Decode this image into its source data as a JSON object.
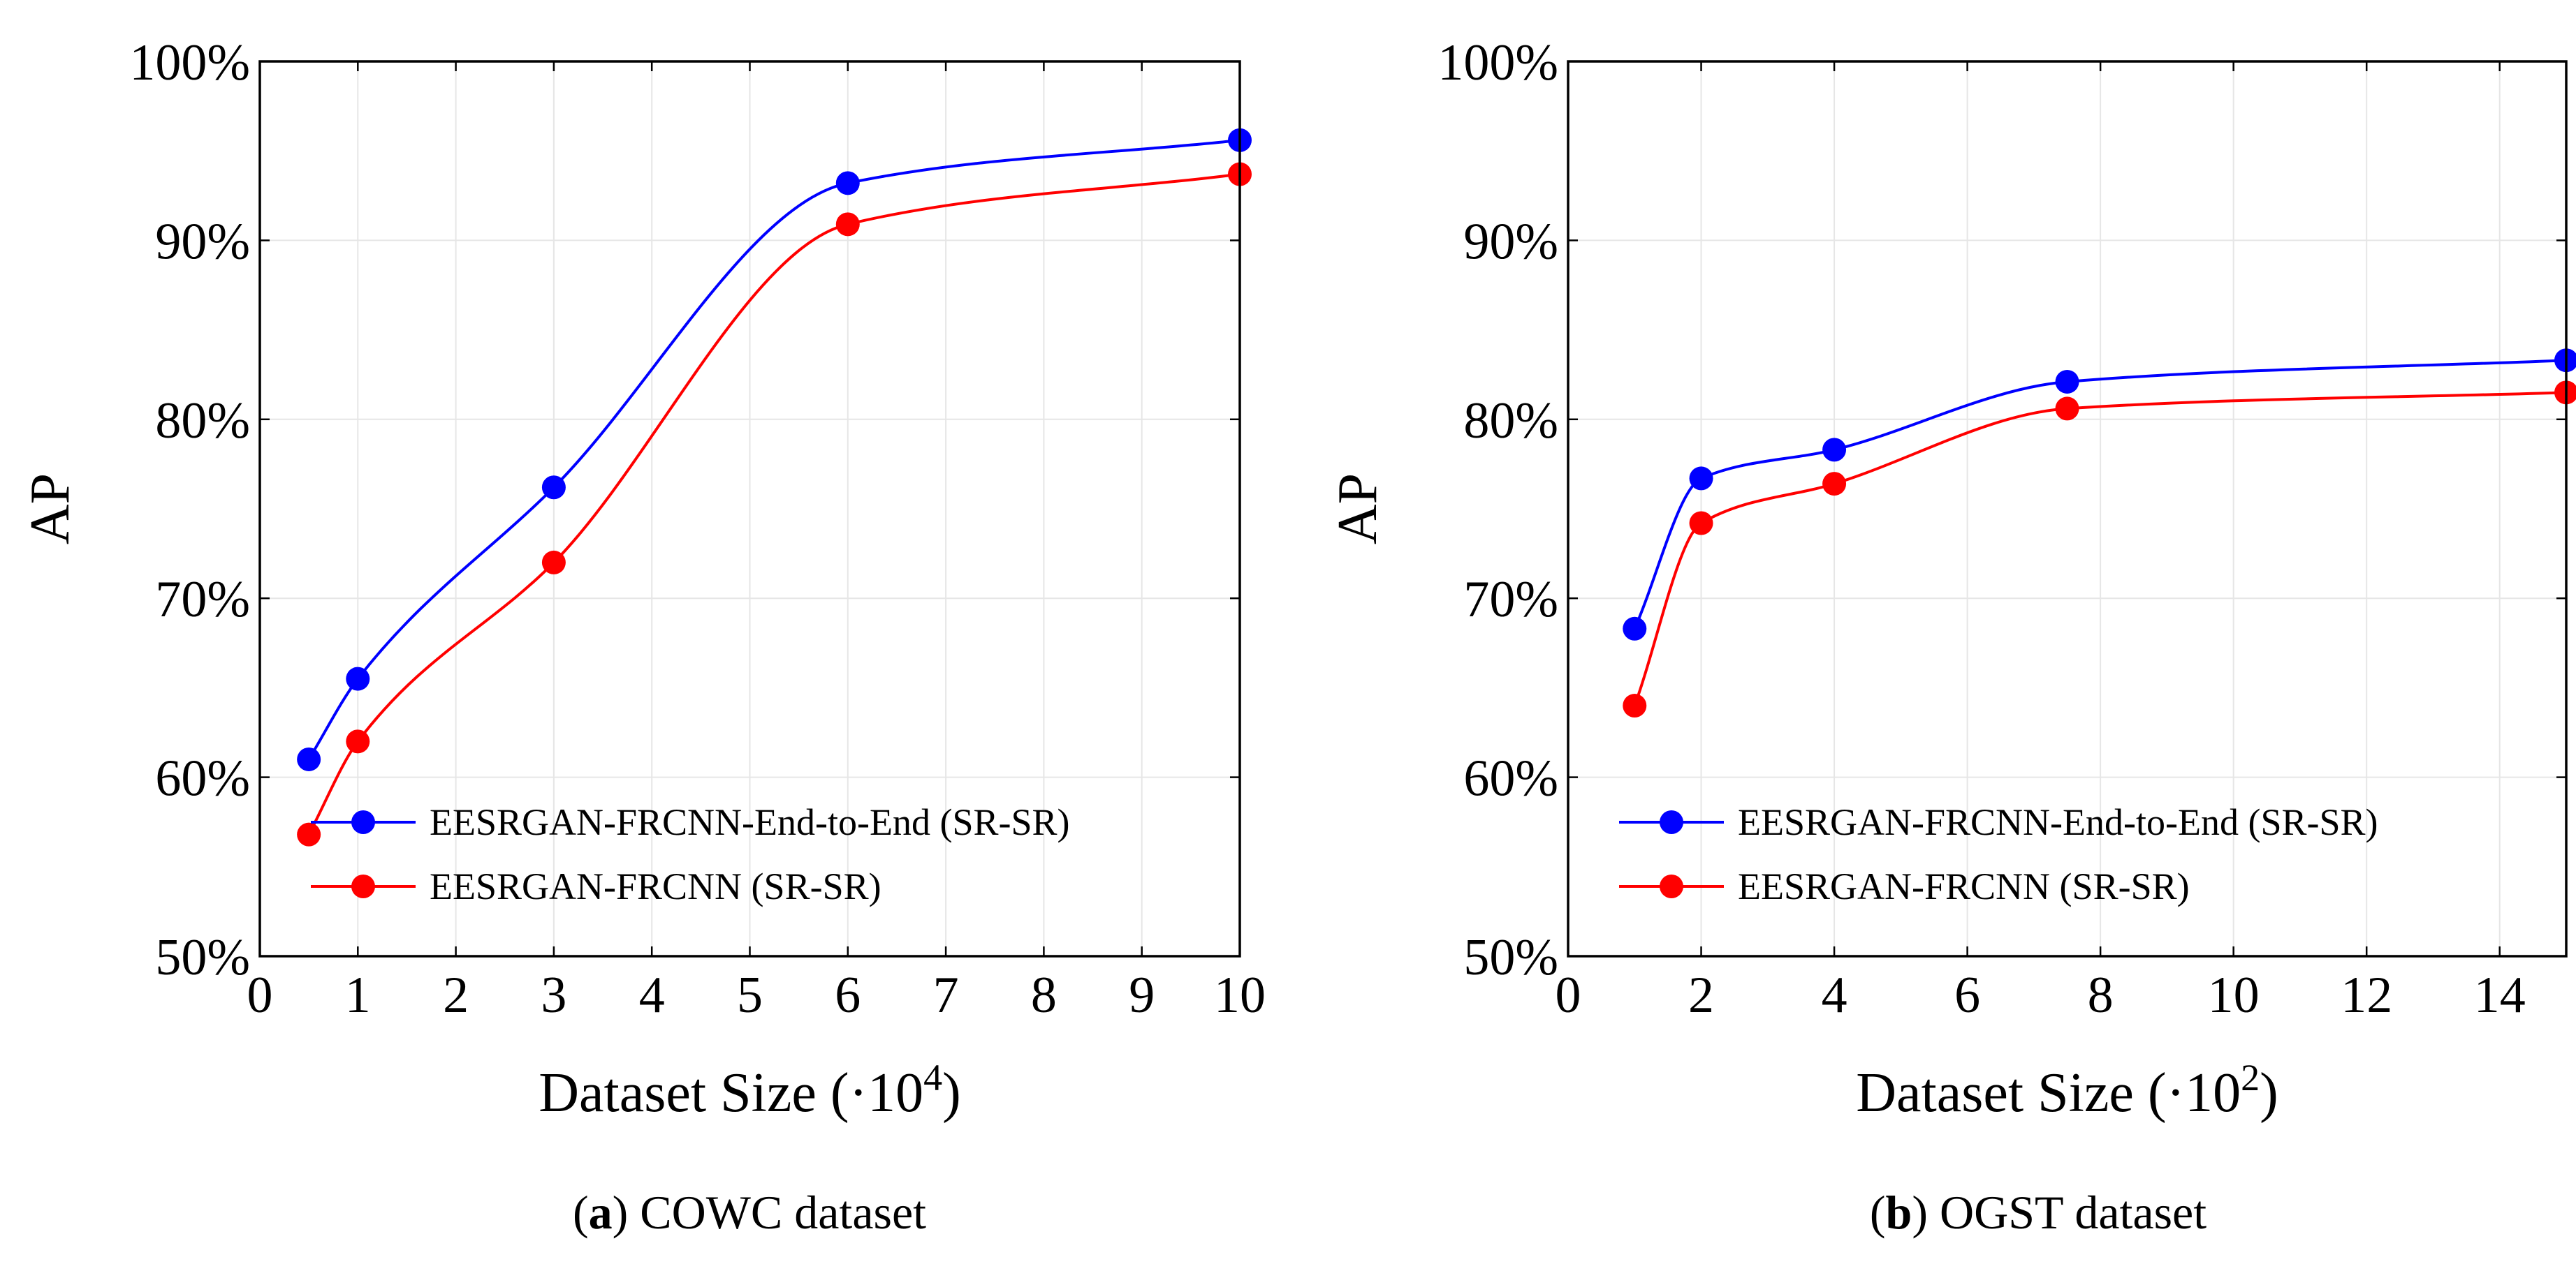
{
  "chart_data": [
    {
      "type": "line",
      "caption_letter": "a",
      "caption_text": ") COWC dataset",
      "caption_open": "(",
      "xlabel": "Dataset Size (·10",
      "xlabel_exp": "4",
      "xlabel_close": ")",
      "ylabel": "AP",
      "xlim": [
        0,
        10
      ],
      "ylim": [
        50,
        100
      ],
      "x_ticks": [
        0,
        1,
        2,
        3,
        4,
        5,
        6,
        7,
        8,
        9,
        10
      ],
      "x_tick_labels": [
        "0",
        "1",
        "2",
        "3",
        "4",
        "5",
        "6",
        "7",
        "8",
        "9",
        "10"
      ],
      "y_ticks": [
        50,
        60,
        70,
        80,
        90,
        100
      ],
      "y_tick_labels": [
        "50%",
        "60%",
        "70%",
        "80%",
        "90%",
        "100%"
      ],
      "grid": true,
      "legend_position": "bottom-left",
      "series": [
        {
          "name": "EESRGAN-FRCNN-End-to-End (SR-SR)",
          "color": "#0000ff",
          "x": [
            0.5,
            1,
            3,
            6,
            10
          ],
          "y": [
            61.0,
            65.5,
            76.2,
            93.2,
            95.6
          ]
        },
        {
          "name": "EESRGAN-FRCNN (SR-SR)",
          "color": "#ff0000",
          "x": [
            0.5,
            1,
            3,
            6,
            10
          ],
          "y": [
            56.8,
            62.0,
            72.0,
            90.9,
            93.7
          ]
        }
      ]
    },
    {
      "type": "line",
      "caption_letter": "b",
      "caption_text": ") OGST dataset",
      "caption_open": "(",
      "xlabel": "Dataset Size (·10",
      "xlabel_exp": "2",
      "xlabel_close": ")",
      "ylabel": "AP",
      "xlim": [
        0,
        15
      ],
      "ylim": [
        50,
        100
      ],
      "x_ticks": [
        0,
        2,
        4,
        6,
        8,
        10,
        12,
        14
      ],
      "x_tick_labels": [
        "0",
        "2",
        "4",
        "6",
        "8",
        "10",
        "12",
        "14"
      ],
      "y_ticks": [
        50,
        60,
        70,
        80,
        90,
        100
      ],
      "y_tick_labels": [
        "50%",
        "60%",
        "70%",
        "80%",
        "90%",
        "100%"
      ],
      "grid": true,
      "legend_position": "bottom-left",
      "series": [
        {
          "name": "EESRGAN-FRCNN-End-to-End (SR-SR)",
          "color": "#0000ff",
          "x": [
            1,
            2,
            4,
            7.5,
            15
          ],
          "y": [
            68.3,
            76.7,
            78.3,
            82.1,
            83.3
          ]
        },
        {
          "name": "EESRGAN-FRCNN (SR-SR)",
          "color": "#ff0000",
          "x": [
            1,
            2,
            4,
            7.5,
            15
          ],
          "y": [
            64.0,
            74.2,
            76.4,
            80.6,
            81.5
          ]
        }
      ]
    }
  ]
}
